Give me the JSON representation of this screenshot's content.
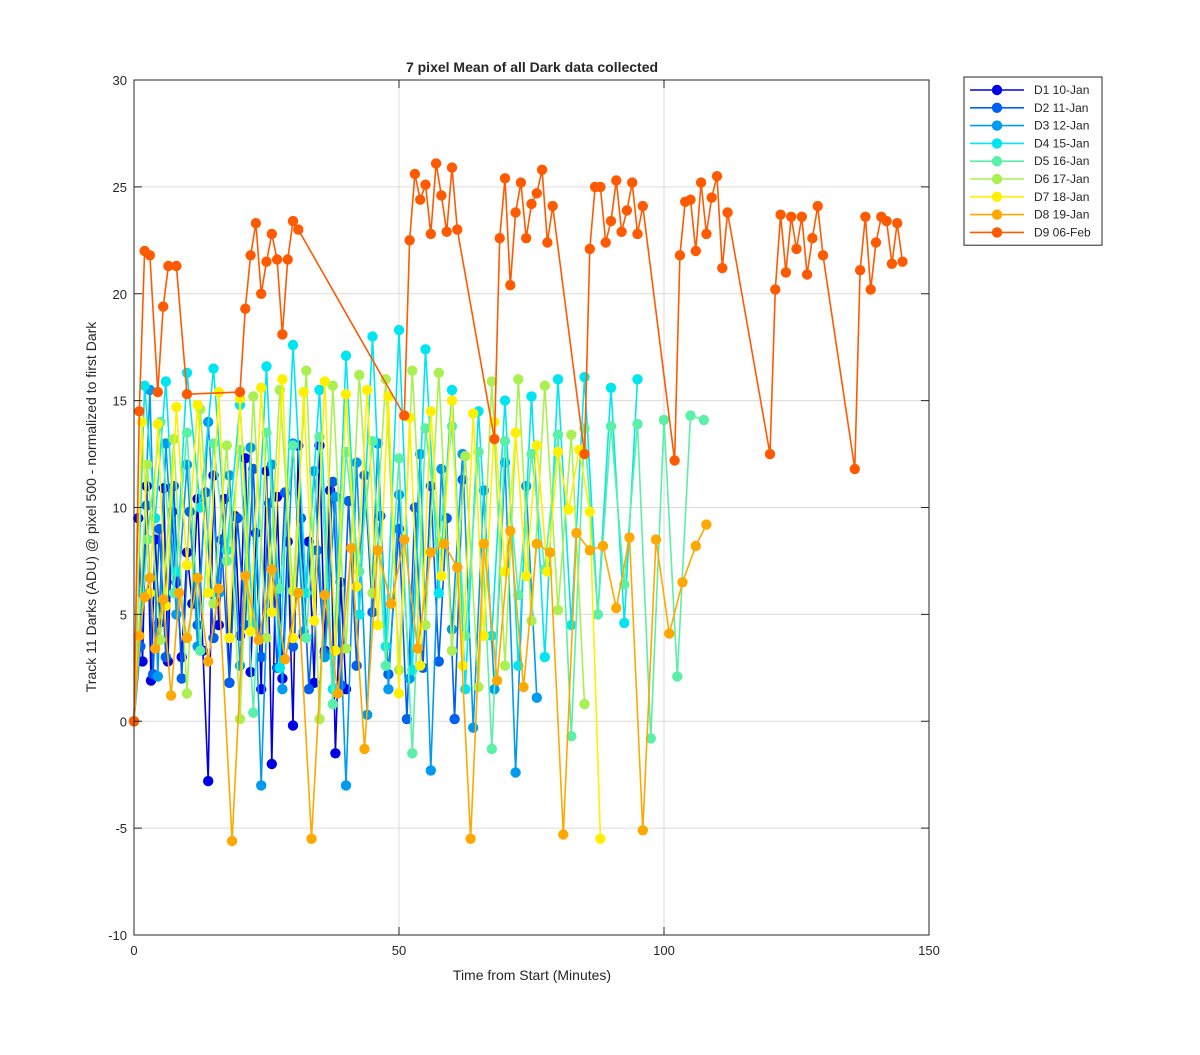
{
  "chart_data": {
    "type": "line",
    "title": "7 pixel Mean of all Dark data collected",
    "xlabel": "Time from Start (Minutes)",
    "ylabel": "Track 11 Darks (ADU) @ pixel 500 - normalized to first Dark",
    "xlim": [
      0,
      150
    ],
    "ylim": [
      -10,
      30
    ],
    "xticks": [
      0,
      50,
      100,
      150
    ],
    "yticks": [
      -10,
      -5,
      0,
      5,
      10,
      15,
      20,
      25,
      30
    ],
    "grid": true,
    "legend_position": "outside-top-right",
    "marker": "circle",
    "series": [
      {
        "name": "D1 10-Jan",
        "color": "#0000e6",
        "x": [
          0,
          0.8,
          1.6,
          2.4,
          3.2,
          4.0,
          4.8,
          5.6,
          6.4,
          7.2,
          8.0,
          9.0,
          10.0,
          11.0,
          12.0,
          13.0,
          14.0,
          15.0,
          16.0,
          17.0,
          18.0,
          19.0,
          20.0,
          21.0,
          22.0,
          23.0,
          24.0,
          25.0,
          26.0,
          27.0,
          28.0,
          29.0,
          30.0,
          31.0,
          32.0,
          33.0,
          34.0,
          35.0,
          36.0,
          37.0,
          38.0,
          39.0,
          40.0
        ],
        "y": [
          0,
          9.5,
          2.8,
          11.0,
          1.9,
          8.5,
          4.6,
          10.9,
          2.8,
          9.8,
          6.5,
          3.0,
          7.9,
          5.5,
          10.4,
          3.3,
          -2.8,
          11.5,
          4.5,
          10.4,
          1.8,
          9.6,
          4.0,
          12.3,
          2.3,
          8.8,
          1.5,
          11.7,
          -2.0,
          10.5,
          2.0,
          8.4,
          -0.2,
          12.9,
          4.0,
          8.4,
          1.8,
          12.9,
          3.3,
          10.8,
          -1.5,
          6.5,
          1.5
        ]
      },
      {
        "name": "D2 11-Jan",
        "color": "#0060f0",
        "x": [
          0,
          1.2,
          2.4,
          3.6,
          4.8,
          6.0,
          7.5,
          9.0,
          10.5,
          12.0,
          13.5,
          15.0,
          16.5,
          18.0,
          19.5,
          21.0,
          22.5,
          24.0,
          25.5,
          27.0,
          28.5,
          30.0,
          31.5,
          33.0,
          34.5,
          36.0,
          37.5,
          39.0,
          40.5,
          42.0,
          43.5,
          45.0,
          46.5,
          48.0,
          50.0,
          51.5,
          53.0,
          54.5,
          56.0,
          57.5,
          59.0,
          60.5,
          62.0
        ],
        "y": [
          0,
          3.5,
          10.1,
          2.2,
          9.0,
          3.0,
          11.0,
          2.0,
          9.8,
          4.5,
          10.7,
          3.9,
          8.5,
          1.8,
          9.5,
          4.5,
          11.8,
          3.0,
          10.2,
          2.5,
          10.7,
          3.5,
          9.5,
          1.5,
          8.0,
          3.2,
          11.2,
          1.7,
          10.3,
          2.6,
          11.5,
          5.1,
          9.6,
          2.2,
          9.0,
          0.1,
          10.0,
          2.5,
          11.0,
          2.8,
          9.5,
          0.1,
          11.3
        ]
      },
      {
        "name": "D3 12-Jan",
        "color": "#009bf0",
        "x": [
          0,
          1.5,
          3.0,
          4.5,
          6.0,
          8.0,
          10.0,
          12.0,
          14.0,
          16.0,
          18.0,
          20.0,
          22.0,
          24.0,
          26.0,
          28.0,
          30.0,
          32.0,
          34.0,
          36.0,
          38.0,
          40.0,
          42.0,
          44.0,
          46.0,
          48.0,
          50.0,
          52.0,
          54.0,
          56.0,
          58.0,
          60.0,
          62.0,
          64.0,
          66.0,
          68.0,
          70.0,
          72.0,
          74.0,
          76.0
        ],
        "y": [
          0,
          6.0,
          15.5,
          2.1,
          13.0,
          5.0,
          12.0,
          3.5,
          14.0,
          6.0,
          11.5,
          2.6,
          12.8,
          -3.0,
          12.0,
          1.5,
          13.0,
          4.2,
          11.7,
          3.0,
          10.5,
          -3.0,
          12.1,
          0.3,
          13.0,
          1.5,
          10.6,
          2.0,
          12.5,
          -2.3,
          11.8,
          4.3,
          12.5,
          -0.3,
          10.8,
          1.5,
          12.1,
          -2.4,
          11.0,
          1.1
        ]
      },
      {
        "name": "D4 15-Jan",
        "color": "#00e6f0",
        "x": [
          0,
          2.0,
          4.0,
          6.0,
          8.0,
          10.0,
          12.5,
          15.0,
          17.5,
          20.0,
          22.5,
          25.0,
          27.5,
          30.0,
          32.5,
          35.0,
          37.5,
          40.0,
          42.5,
          45.0,
          47.5,
          50.0,
          52.5,
          55.0,
          57.5,
          60.0,
          62.5,
          65.0,
          67.5,
          70.0,
          72.5,
          75.0,
          77.5,
          80.0,
          82.5,
          85.0,
          87.5,
          90.0,
          92.5,
          95.0
        ],
        "y": [
          0,
          15.7,
          9.5,
          15.9,
          7.0,
          16.3,
          10.0,
          16.5,
          8.0,
          14.8,
          4.5,
          16.6,
          2.5,
          17.6,
          6.0,
          15.5,
          1.5,
          17.1,
          5.0,
          18.0,
          3.5,
          18.3,
          2.4,
          17.4,
          6.0,
          15.5,
          1.5,
          14.5,
          4.0,
          15.0,
          2.6,
          15.2,
          3.0,
          16.0,
          4.5,
          16.1,
          5.0,
          15.6,
          4.6,
          16.0
        ]
      },
      {
        "name": "D5 16-Jan",
        "color": "#5af0a8",
        "x": [
          0,
          2.5,
          5.0,
          7.5,
          10.0,
          12.5,
          15.0,
          17.5,
          20.0,
          22.5,
          25.0,
          27.5,
          30.0,
          32.5,
          35.0,
          37.5,
          40.0,
          42.5,
          45.0,
          47.5,
          50.0,
          52.5,
          55.0,
          57.5,
          60.0,
          62.5,
          65.0,
          67.5,
          70.0,
          72.5,
          75.0,
          77.5,
          80.0,
          82.5,
          85.0,
          87.5,
          90.0,
          92.5,
          95.0,
          97.5,
          100.0,
          102.5,
          105.0,
          107.5
        ],
        "y": [
          0,
          8.5,
          14.0,
          6.0,
          13.5,
          3.3,
          13.0,
          7.5,
          12.7,
          0.4,
          13.5,
          6.2,
          12.9,
          3.9,
          13.3,
          0.8,
          12.6,
          7.0,
          13.1,
          2.6,
          12.3,
          -1.5,
          13.7,
          8.4,
          13.8,
          4.0,
          12.6,
          -1.3,
          13.1,
          5.9,
          12.5,
          7.1,
          13.4,
          -0.7,
          13.7,
          5.0,
          13.8,
          6.4,
          13.9,
          -0.8,
          14.1,
          2.1,
          14.3,
          14.1
        ]
      },
      {
        "name": "D6 17-Jan",
        "color": "#aaf050",
        "x": [
          0,
          2.5,
          5.0,
          7.5,
          10.0,
          12.5,
          15.0,
          17.5,
          20.0,
          22.5,
          25.0,
          27.5,
          30.0,
          32.5,
          35.0,
          37.5,
          40.0,
          42.5,
          45.0,
          47.5,
          50.0,
          52.5,
          55.0,
          57.5,
          60.0,
          62.5,
          65.0,
          67.5,
          70.0,
          72.5,
          75.0,
          77.5,
          80.0,
          82.5,
          85.0
        ],
        "y": [
          0,
          12.0,
          3.8,
          13.2,
          1.3,
          14.6,
          5.5,
          12.9,
          0.1,
          15.2,
          3.9,
          15.5,
          6.1,
          16.4,
          0.1,
          15.7,
          3.4,
          16.2,
          6.0,
          16.0,
          2.4,
          16.4,
          4.5,
          16.3,
          3.3,
          12.4,
          1.6,
          15.9,
          2.6,
          16.0,
          4.7,
          15.7,
          5.2,
          13.4,
          0.8
        ]
      },
      {
        "name": "D7 18-Jan",
        "color": "#fff000",
        "x": [
          0,
          1.5,
          3.0,
          4.5,
          6.0,
          8.0,
          10.0,
          12.0,
          14.0,
          16.0,
          18.0,
          20.0,
          22.0,
          24.0,
          26.0,
          28.0,
          30.0,
          32.0,
          34.0,
          36.0,
          38.0,
          40.0,
          42.0,
          44.0,
          46.0,
          48.0,
          50.0,
          52.0,
          54.0,
          56.0,
          58.0,
          60.0,
          62.0,
          64.0,
          66.0,
          68.0,
          70.0,
          72.0,
          74.0,
          76.0,
          78.0,
          80.0,
          82.0,
          84.0,
          86.0,
          88.0
        ],
        "y": [
          0,
          14.0,
          6.0,
          13.9,
          5.4,
          14.7,
          7.3,
          14.8,
          6.0,
          15.4,
          3.9,
          15.1,
          4.2,
          15.6,
          5.1,
          16.0,
          3.9,
          15.4,
          4.7,
          15.9,
          3.3,
          15.3,
          6.3,
          15.5,
          4.5,
          15.2,
          1.3,
          14.2,
          2.6,
          14.5,
          6.8,
          15.0,
          2.6,
          14.4,
          4.0,
          14.0,
          7.0,
          13.5,
          6.8,
          12.9,
          7.0,
          12.6,
          9.9,
          12.7,
          9.8,
          -5.5
        ]
      },
      {
        "name": "D8 19-Jan",
        "color": "#ffa800",
        "x": [
          0,
          1.0,
          2.0,
          3.0,
          4.0,
          5.5,
          7.0,
          8.5,
          10.0,
          12.0,
          14.0,
          16.0,
          18.5,
          21.0,
          23.5,
          26.0,
          28.5,
          31.0,
          33.5,
          36.0,
          38.5,
          41.0,
          43.5,
          46.0,
          48.5,
          51.0,
          53.5,
          56.0,
          58.5,
          61.0,
          63.5,
          66.0,
          68.5,
          71.0,
          73.5,
          76.0,
          78.5,
          81.0,
          83.5,
          86.0,
          88.5,
          91.0,
          93.5,
          96.0,
          98.5,
          101.0,
          103.5,
          106.0,
          108.0
        ],
        "y": [
          0,
          4.0,
          5.8,
          6.7,
          3.4,
          5.7,
          1.2,
          6.0,
          3.9,
          6.7,
          2.8,
          6.2,
          -5.6,
          6.8,
          3.8,
          7.1,
          2.9,
          6.0,
          -5.5,
          5.9,
          1.3,
          8.1,
          -1.3,
          8.0,
          5.5,
          8.5,
          3.4,
          7.9,
          8.3,
          7.2,
          -5.5,
          8.3,
          1.9,
          8.9,
          1.6,
          8.3,
          7.9,
          -5.3,
          8.8,
          8.0,
          8.2,
          5.3,
          8.6,
          -5.1,
          8.5,
          4.1,
          6.5,
          8.2,
          9.2
        ]
      },
      {
        "name": "D9 06-Feb",
        "color": "#ff5a00",
        "x": [
          0,
          1.0,
          2.0,
          3.0,
          4.5,
          5.5,
          6.5,
          8.0,
          10.0,
          20.0,
          21.0,
          22.0,
          23.0,
          24.0,
          25.0,
          26.0,
          27.0,
          28.0,
          29.0,
          30.0,
          31.0,
          51.0,
          52.0,
          53.0,
          54.0,
          55.0,
          56.0,
          57.0,
          58.0,
          59.0,
          60.0,
          61.0,
          68.0,
          69.0,
          70.0,
          71.0,
          72.0,
          73.0,
          74.0,
          75.0,
          76.0,
          77.0,
          78.0,
          79.0,
          85.0,
          86.0,
          87.0,
          88.0,
          89.0,
          90.0,
          91.0,
          92.0,
          93.0,
          94.0,
          95.0,
          96.0,
          102.0,
          103.0,
          104.0,
          105.0,
          106.0,
          107.0,
          108.0,
          109.0,
          110.0,
          111.0,
          112.0,
          120.0,
          121.0,
          122.0,
          123.0,
          124.0,
          125.0,
          126.0,
          127.0,
          128.0,
          129.0,
          130.0,
          136.0,
          137.0,
          138.0,
          139.0,
          140.0,
          141.0,
          142.0,
          143.0,
          144.0,
          145.0
        ],
        "y": [
          0,
          14.5,
          22.0,
          21.8,
          15.4,
          19.4,
          21.3,
          21.3,
          15.3,
          15.4,
          19.3,
          21.8,
          23.3,
          20.0,
          21.5,
          22.8,
          21.6,
          18.1,
          21.6,
          23.4,
          23.0,
          14.3,
          22.5,
          25.6,
          24.4,
          25.1,
          22.8,
          26.1,
          24.6,
          22.9,
          25.9,
          23.0,
          13.2,
          22.6,
          25.4,
          20.4,
          23.8,
          25.2,
          22.6,
          24.2,
          24.7,
          25.8,
          22.4,
          24.1,
          12.5,
          22.1,
          25.0,
          25.0,
          22.4,
          23.4,
          25.3,
          22.9,
          23.9,
          25.2,
          22.8,
          24.1,
          12.2,
          21.8,
          24.3,
          24.4,
          22.0,
          25.2,
          22.8,
          24.5,
          25.5,
          21.2,
          23.8,
          12.5,
          20.2,
          23.7,
          21.0,
          23.6,
          22.1,
          23.6,
          20.9,
          22.6,
          24.1,
          21.8,
          11.8,
          21.1,
          23.6,
          20.2,
          22.4,
          23.6,
          23.4,
          21.4,
          23.3,
          21.5
        ]
      }
    ]
  }
}
